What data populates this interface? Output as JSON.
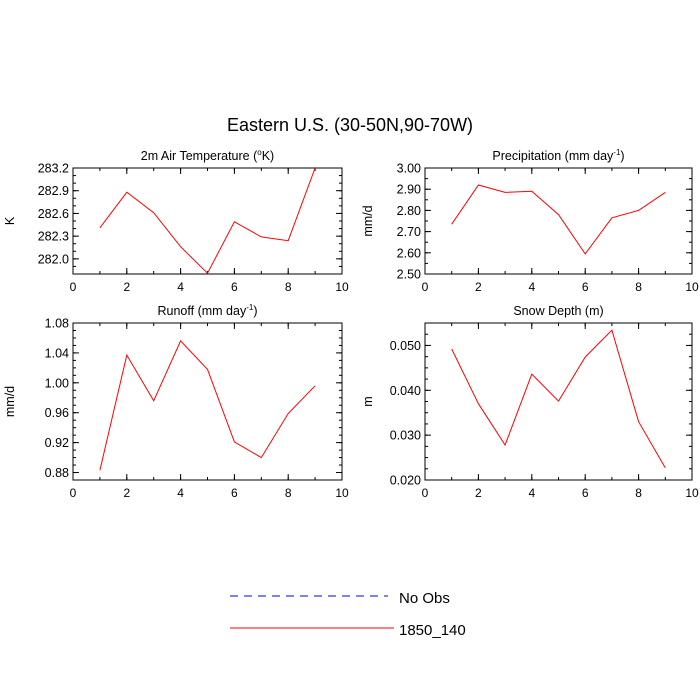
{
  "figure_title": "Eastern U.S. (30-50N,90-70W)",
  "line_color": "#ff0000",
  "obs_color": "#0000ff",
  "legend": [
    {
      "label": "No Obs",
      "style": "dashed",
      "color": "#0000ff"
    },
    {
      "label": "1850_140",
      "style": "solid",
      "color": "#ff0000"
    }
  ],
  "chart_data": [
    {
      "type": "line",
      "title_main": "2m Air Temperature (",
      "title_sup": "o",
      "title_rest": "K)",
      "ylabel": "K",
      "xlim": [
        0,
        10
      ],
      "ylim": [
        281.8,
        283.2
      ],
      "xticks": [
        0,
        2,
        4,
        6,
        8,
        10
      ],
      "xtick_labels": [
        "0",
        "2",
        "4",
        "6",
        "8",
        "10"
      ],
      "yticks": [
        282.0,
        282.3,
        282.6,
        282.9,
        283.2
      ],
      "ytick_labels": [
        "282.0",
        "282.3",
        "282.6",
        "282.9",
        "283.2"
      ],
      "xminor": 1,
      "yminor": 0.1,
      "series": [
        {
          "name": "1850_140",
          "x": [
            1,
            2,
            3,
            4,
            5,
            6,
            7,
            8,
            9
          ],
          "y": [
            282.41,
            282.88,
            282.61,
            282.16,
            281.81,
            282.49,
            282.29,
            282.24,
            283.2
          ]
        }
      ]
    },
    {
      "type": "line",
      "title_main": "Precipitation (mm day",
      "title_sup": "-1",
      "title_rest": ")",
      "ylabel": "mm/d",
      "xlim": [
        0,
        10
      ],
      "ylim": [
        2.5,
        3.0
      ],
      "xticks": [
        0,
        2,
        4,
        6,
        8,
        10
      ],
      "xtick_labels": [
        "0",
        "2",
        "4",
        "6",
        "8",
        "10"
      ],
      "yticks": [
        2.5,
        2.6,
        2.7,
        2.8,
        2.9,
        3.0
      ],
      "ytick_labels": [
        "2.50",
        "2.60",
        "2.70",
        "2.80",
        "2.90",
        "3.00"
      ],
      "xminor": 1,
      "yminor": 0.05,
      "series": [
        {
          "name": "1850_140",
          "x": [
            1,
            2,
            3,
            4,
            5,
            6,
            7,
            8,
            9
          ],
          "y": [
            2.735,
            2.92,
            2.885,
            2.89,
            2.78,
            2.595,
            2.765,
            2.8,
            2.885
          ]
        }
      ]
    },
    {
      "type": "line",
      "title_main": "Runoff (mm day",
      "title_sup": "-1",
      "title_rest": ")",
      "ylabel": "mm/d",
      "xlim": [
        0,
        10
      ],
      "ylim": [
        0.87,
        1.08
      ],
      "xticks": [
        0,
        2,
        4,
        6,
        8,
        10
      ],
      "xtick_labels": [
        "0",
        "2",
        "4",
        "6",
        "8",
        "10"
      ],
      "yticks": [
        0.88,
        0.92,
        0.96,
        1.0,
        1.04,
        1.08
      ],
      "ytick_labels": [
        "0.88",
        "0.92",
        "0.96",
        "1.00",
        "1.04",
        "1.08"
      ],
      "xminor": 1,
      "yminor": 0.01,
      "series": [
        {
          "name": "1850_140",
          "x": [
            1,
            2,
            3,
            4,
            5,
            6,
            7,
            8,
            9
          ],
          "y": [
            0.883,
            1.037,
            0.976,
            1.056,
            1.018,
            0.921,
            0.9,
            0.959,
            0.996
          ]
        }
      ]
    },
    {
      "type": "line",
      "title_main": "Snow Depth (m)",
      "title_sup": "",
      "title_rest": "",
      "ylabel": "m",
      "xlim": [
        0,
        10
      ],
      "ylim": [
        0.02,
        0.055
      ],
      "xticks": [
        0,
        2,
        4,
        6,
        8,
        10
      ],
      "xtick_labels": [
        "0",
        "2",
        "4",
        "6",
        "8",
        "10"
      ],
      "yticks": [
        0.02,
        0.03,
        0.04,
        0.05
      ],
      "ytick_labels": [
        "0.020",
        "0.030",
        "0.040",
        "0.050"
      ],
      "xminor": 1,
      "yminor": 0.0025,
      "series": [
        {
          "name": "1850_140",
          "x": [
            1,
            2,
            3,
            4,
            5,
            6,
            7,
            8,
            9
          ],
          "y": [
            0.0492,
            0.037,
            0.0278,
            0.0436,
            0.0376,
            0.0474,
            0.0534,
            0.033,
            0.0227
          ]
        }
      ]
    }
  ]
}
